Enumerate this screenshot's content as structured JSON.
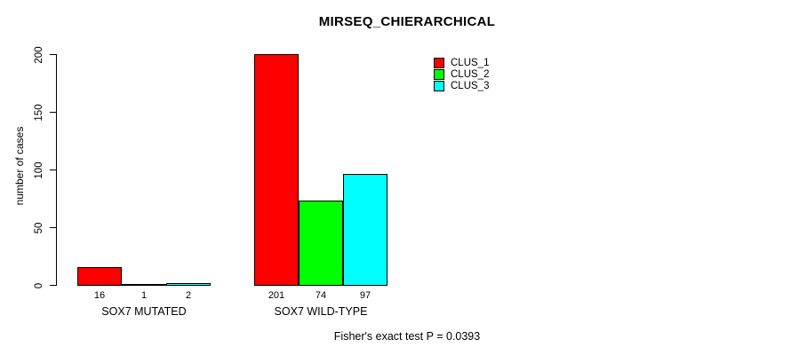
{
  "chart_data": {
    "type": "bar",
    "title": "MIRSEQ_CHIERARCHICAL",
    "ylabel": "number of cases",
    "xlabel": "",
    "categories": [
      "SOX7 MUTATED",
      "SOX7 WILD-TYPE"
    ],
    "series": [
      {
        "name": "CLUS_1",
        "color": "#ff0000",
        "values": [
          16,
          201
        ]
      },
      {
        "name": "CLUS_2",
        "color": "#00ff00",
        "values": [
          1,
          74
        ]
      },
      {
        "name": "CLUS_3",
        "color": "#00ffff",
        "values": [
          2,
          97
        ]
      }
    ],
    "bar_value_labels": [
      [
        "16",
        "1",
        "2"
      ],
      [
        "201",
        "74",
        "97"
      ]
    ],
    "yticks": [
      "0",
      "50",
      "100",
      "150",
      "200"
    ],
    "ylim": [
      0,
      200
    ],
    "grid": false,
    "legend_position": "upper-right-inside",
    "annotation": "Fisher's exact test P = 0.0393"
  }
}
